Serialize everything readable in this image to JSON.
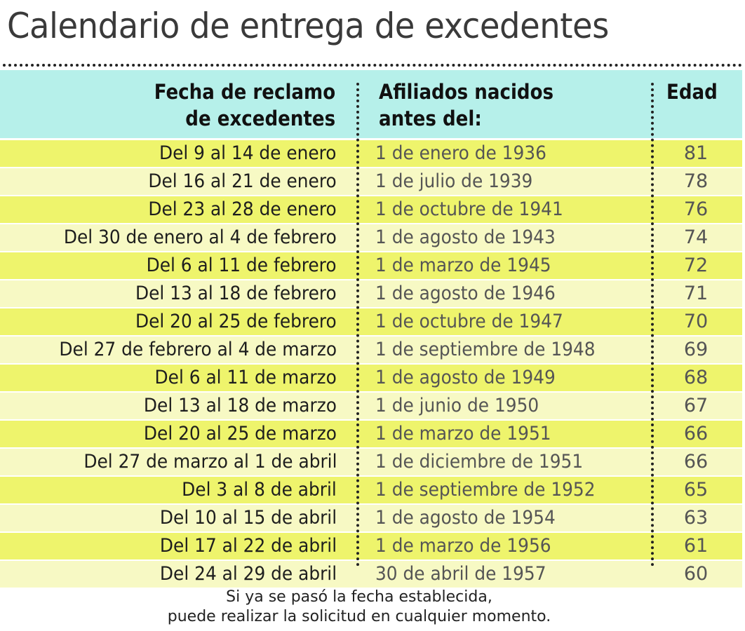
{
  "title": "Calendario de entrega de excedentes",
  "headers": {
    "fecha_line1": "Fecha de reclamo",
    "fecha_line2": "de excedentes",
    "afiliados_line1": "Afiliados nacidos",
    "afiliados_line2": "antes del:",
    "edad": "Edad"
  },
  "colors": {
    "header_bg": "#b6f0ea",
    "row_odd": "#eef46c",
    "row_even": "#f7f9c4"
  },
  "rows": [
    {
      "fecha": "Del 9 al 14 de enero",
      "nacidos": "1 de enero de 1936",
      "edad": "81"
    },
    {
      "fecha": "Del 16  al 21 de enero",
      "nacidos": "1 de julio de 1939",
      "edad": "78"
    },
    {
      "fecha": "Del 23  al 28 de enero",
      "nacidos": "1 de octubre de 1941",
      "edad": "76"
    },
    {
      "fecha": "Del 30 de enero al 4 de febrero",
      "nacidos": "1 de agosto de 1943",
      "edad": "74"
    },
    {
      "fecha": "Del 6 al 11 de febrero",
      "nacidos": "1 de marzo de 1945",
      "edad": "72"
    },
    {
      "fecha": "Del 13 al 18 de febrero",
      "nacidos": "1 de agosto de 1946",
      "edad": "71"
    },
    {
      "fecha": "Del 20 al 25 de febrero",
      "nacidos": "1 de octubre de 1947",
      "edad": "70"
    },
    {
      "fecha": "Del 27 de febrero al 4 de marzo",
      "nacidos": "1 de septiembre de 1948",
      "edad": "69"
    },
    {
      "fecha": "Del 6 al 11 de marzo",
      "nacidos": "1 de agosto de 1949",
      "edad": "68"
    },
    {
      "fecha": "Del 13 al 18 de marzo",
      "nacidos": "1 de junio  de 1950",
      "edad": "67"
    },
    {
      "fecha": "Del 20 al 25 de marzo",
      "nacidos": "1 de marzo  de 1951",
      "edad": "66"
    },
    {
      "fecha": "Del 27 de marzo al 1 de abril",
      "nacidos": "1 de diciembre de 1951",
      "edad": "66"
    },
    {
      "fecha": "Del 3 al 8 de abril",
      "nacidos": "1 de septiembre de 1952",
      "edad": "65"
    },
    {
      "fecha": "Del 10 al 15 de abril",
      "nacidos": "1 de agosto de 1954",
      "edad": "63"
    },
    {
      "fecha": "Del 17 al 22 de abril",
      "nacidos": "1 de marzo de 1956",
      "edad": "61"
    },
    {
      "fecha": "Del 24 al 29 de abril",
      "nacidos": "30 de abril de 1957",
      "edad": "60"
    }
  ],
  "note": {
    "line1": "Si ya se pasó la fecha establecida,",
    "line2": "puede realizar la solicitud en cualquier momento."
  }
}
